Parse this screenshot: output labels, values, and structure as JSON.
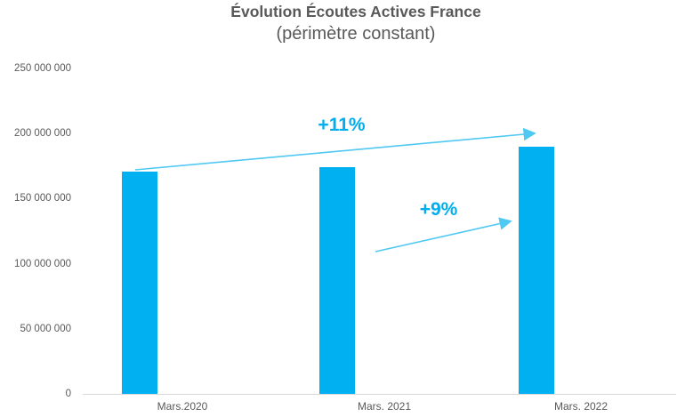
{
  "chart_data": {
    "type": "bar",
    "title": "Évolution Écoutes Actives France",
    "subtitle": "(périmètre constant)",
    "categories": [
      "Mars.2020",
      "Mars. 2021",
      "Mars. 2022"
    ],
    "values": [
      171000000,
      174000000,
      190000000
    ],
    "xlabel": "",
    "ylabel": "",
    "ylim": [
      0,
      250000000
    ],
    "yticks": [
      {
        "value": 250000000,
        "label": "250 000 000"
      },
      {
        "value": 200000000,
        "label": "200 000 000"
      },
      {
        "value": 150000000,
        "label": "150 000 000"
      },
      {
        "value": 100000000,
        "label": "100 000 000"
      },
      {
        "value": 50000000,
        "label": "50 000 000"
      },
      {
        "value": 0,
        "label": "0"
      }
    ],
    "grid": false,
    "legend": null,
    "annotations": [
      {
        "label": "+11%",
        "from_category": "Mars.2020",
        "to_category": "Mars. 2022"
      },
      {
        "label": "+9%",
        "from_category": "Mars. 2021",
        "to_category": "Mars. 2022"
      }
    ],
    "colors": {
      "bar": "#00B0F0",
      "annotation_text": "#00AEEF",
      "annotation_arrow": "#4FC8F2",
      "title": "#595959",
      "tick_label": "#595959",
      "axis_line": "#D9D9D9",
      "background": "#FFFFFF"
    }
  }
}
